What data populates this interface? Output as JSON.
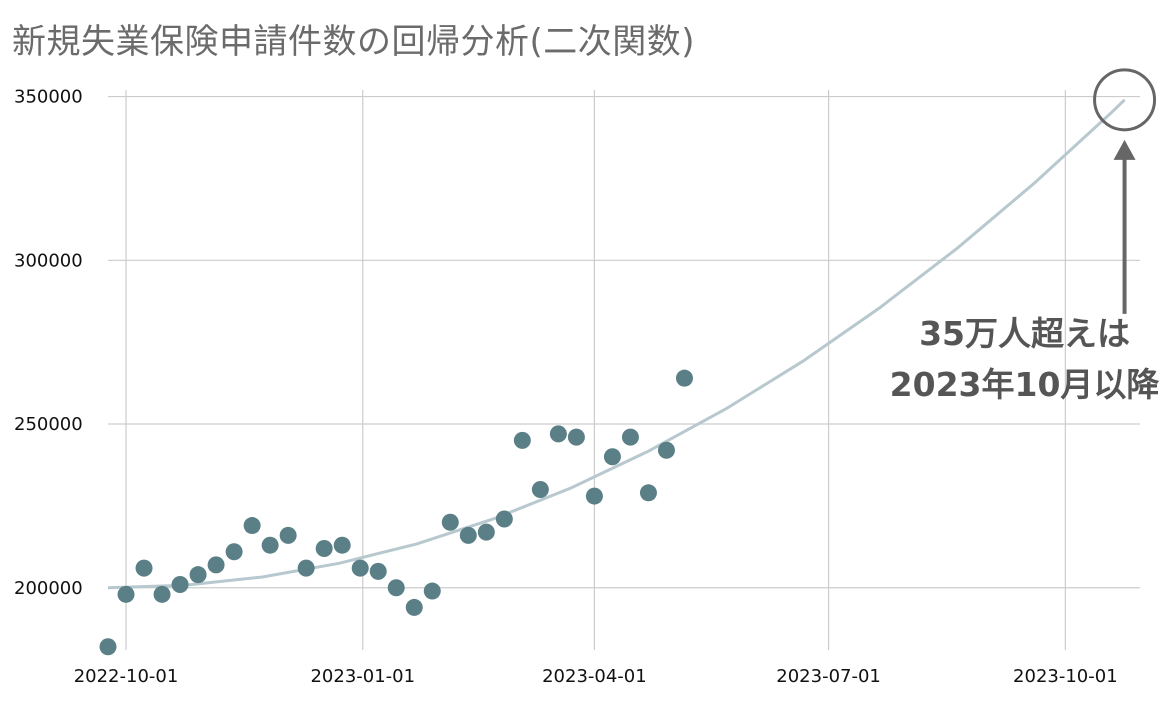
{
  "chart_data": {
    "type": "scatter",
    "title": "新規失業保険申請件数の回帰分析(二次関数)",
    "xlabel": "",
    "ylabel": "",
    "x_ticks": [
      "2022-10-01",
      "2023-01-01",
      "2023-04-01",
      "2023-07-01",
      "2023-10-01"
    ],
    "y_ticks": [
      200000,
      250000,
      300000,
      350000
    ],
    "xlim": [
      "2022-09-24",
      "2023-10-30"
    ],
    "ylim": [
      181000,
      352000
    ],
    "grid": true,
    "colors": {
      "points": "#5b7f87",
      "fit": "#b7c8ce",
      "grid": "#cccccc",
      "annotation": "#666666"
    },
    "points": [
      {
        "x": "2022-09-24",
        "y": 182000
      },
      {
        "x": "2022-10-01",
        "y": 198000
      },
      {
        "x": "2022-10-08",
        "y": 206000
      },
      {
        "x": "2022-10-15",
        "y": 198000
      },
      {
        "x": "2022-10-22",
        "y": 201000
      },
      {
        "x": "2022-10-29",
        "y": 204000
      },
      {
        "x": "2022-11-05",
        "y": 207000
      },
      {
        "x": "2022-11-12",
        "y": 211000
      },
      {
        "x": "2022-11-19",
        "y": 219000
      },
      {
        "x": "2022-11-26",
        "y": 213000
      },
      {
        "x": "2022-12-03",
        "y": 216000
      },
      {
        "x": "2022-12-10",
        "y": 206000
      },
      {
        "x": "2022-12-17",
        "y": 212000
      },
      {
        "x": "2022-12-24",
        "y": 213000
      },
      {
        "x": "2022-12-31",
        "y": 206000
      },
      {
        "x": "2023-01-07",
        "y": 205000
      },
      {
        "x": "2023-01-14",
        "y": 200000
      },
      {
        "x": "2023-01-21",
        "y": 194000
      },
      {
        "x": "2023-01-28",
        "y": 199000
      },
      {
        "x": "2023-02-04",
        "y": 220000
      },
      {
        "x": "2023-02-11",
        "y": 216000
      },
      {
        "x": "2023-02-18",
        "y": 217000
      },
      {
        "x": "2023-02-25",
        "y": 221000
      },
      {
        "x": "2023-03-04",
        "y": 245000
      },
      {
        "x": "2023-03-11",
        "y": 230000
      },
      {
        "x": "2023-03-18",
        "y": 247000
      },
      {
        "x": "2023-03-25",
        "y": 246000
      },
      {
        "x": "2023-04-01",
        "y": 228000
      },
      {
        "x": "2023-04-08",
        "y": 240000
      },
      {
        "x": "2023-04-15",
        "y": 246000
      },
      {
        "x": "2023-04-22",
        "y": 229000
      },
      {
        "x": "2023-04-29",
        "y": 242000
      },
      {
        "x": "2023-05-06",
        "y": 264000
      }
    ],
    "fit": {
      "type": "quadratic",
      "series": [
        {
          "x": "2022-09-24",
          "y": 200000
        },
        {
          "x": "2022-10-24",
          "y": 200800
        },
        {
          "x": "2022-11-23",
          "y": 203300
        },
        {
          "x": "2022-12-23",
          "y": 207500
        },
        {
          "x": "2023-01-22",
          "y": 213400
        },
        {
          "x": "2023-02-21",
          "y": 221100
        },
        {
          "x": "2023-03-23",
          "y": 230500
        },
        {
          "x": "2023-04-22",
          "y": 241700
        },
        {
          "x": "2023-05-22",
          "y": 254600
        },
        {
          "x": "2023-06-21",
          "y": 269200
        },
        {
          "x": "2023-07-21",
          "y": 285600
        },
        {
          "x": "2023-08-20",
          "y": 303700
        },
        {
          "x": "2023-09-19",
          "y": 323600
        },
        {
          "x": "2023-10-19",
          "y": 345200
        },
        {
          "x": "2023-10-24",
          "y": 349000
        }
      ]
    },
    "annotation": {
      "lines": [
        "35万人超えは",
        "2023年10月以降"
      ],
      "target": {
        "x": "2023-10-24",
        "y": 349000
      }
    }
  }
}
